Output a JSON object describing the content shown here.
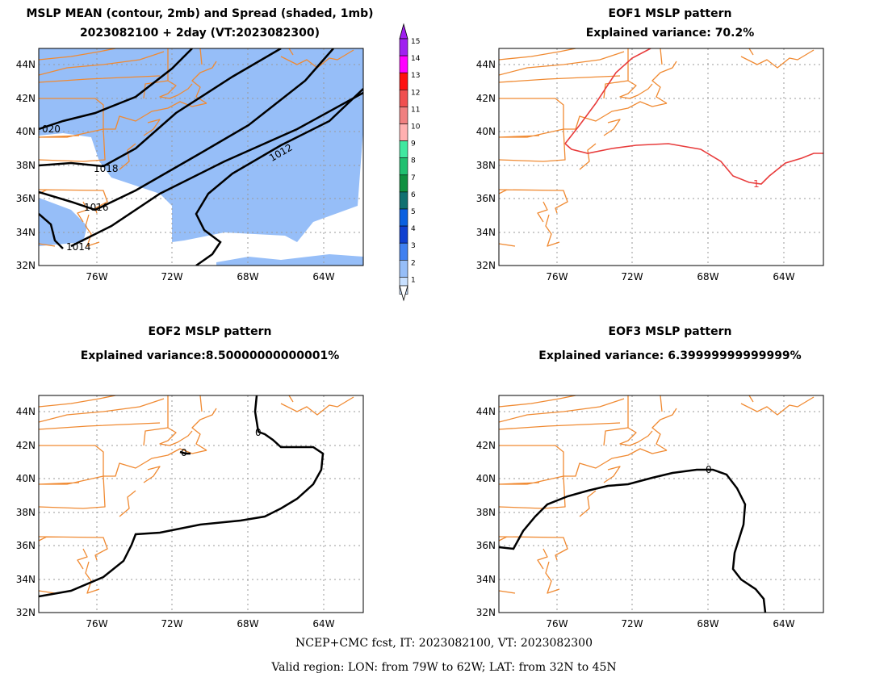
{
  "colors": {
    "spread": "#96bef8",
    "coast": "#f08a32",
    "contour": "#000000",
    "eof_positive": "#e83c3c",
    "grid": "#9a9a9a"
  },
  "panels": [
    {
      "id": "p1",
      "title1": "MSLP MEAN (contour, 2mb) and Spread (shaded, 1mb)",
      "title2": "2023082100 + 2day (VT:2023082300)"
    },
    {
      "id": "p2",
      "title1": "EOF1 MSLP pattern",
      "title2": "Explained variance: 70.2%"
    },
    {
      "id": "p3",
      "title1": "EOF2 MSLP pattern",
      "title2": "Explained variance:8.50000000000001%"
    },
    {
      "id": "p4",
      "title1": "EOF3 MSLP pattern",
      "title2": "Explained variance: 6.39999999999999%"
    }
  ],
  "axes": {
    "lat_labels": [
      "44N",
      "42N",
      "40N",
      "38N",
      "36N",
      "34N",
      "32N"
    ],
    "lon_labels": [
      "76W",
      "72W",
      "68W",
      "64W"
    ],
    "lon_range": [
      -79,
      -62
    ],
    "lat_range": [
      32,
      45
    ]
  },
  "contour_labels": {
    "p1": [
      "020",
      "1018",
      "1016",
      "1014",
      "1012"
    ],
    "p2": [
      "1"
    ],
    "p3": [
      "0",
      "0"
    ],
    "p4": [
      "0"
    ]
  },
  "colorbar": {
    "labels": [
      "15",
      "14",
      "13",
      "12",
      "11",
      "10",
      "9",
      "8",
      "7",
      "6",
      "5",
      "4",
      "3",
      "2",
      "1"
    ],
    "colors": [
      "#a020f0",
      "#ff00ff",
      "#ff1010",
      "#f05050",
      "#f08080",
      "#ffb0b0",
      "#40e8a0",
      "#20c070",
      "#109040",
      "#107070",
      "#0a60e0",
      "#1040d0",
      "#4080f0",
      "#96bef8",
      "#c8e0ff"
    ]
  },
  "footer": {
    "line1": "NCEP+CMC fcst, IT: 2023082100, VT: 2023082300",
    "line2": "Valid region: LON: from 79W to 62W; LAT: from 32N to 45N"
  }
}
